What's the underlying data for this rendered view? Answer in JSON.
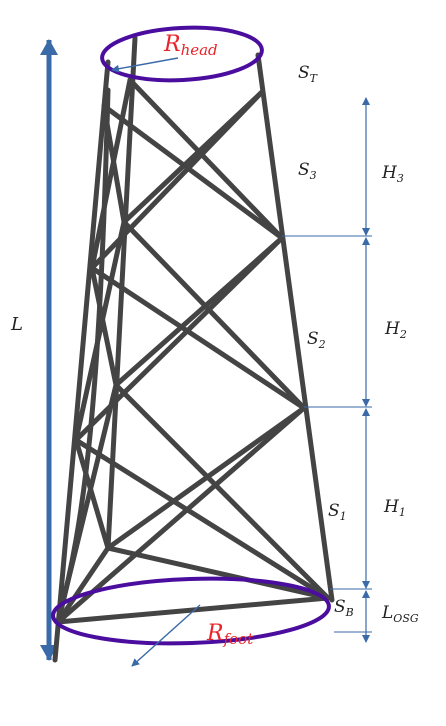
{
  "labels": {
    "r_head": "R",
    "r_head_sub": "head",
    "r_foot": "R",
    "r_foot_sub": "foot",
    "length": "L",
    "s_top": "S",
    "s_top_sub": "T",
    "s3": "S",
    "s3_sub": "3",
    "s2": "S",
    "s2_sub": "2",
    "s1": "S",
    "s1_sub": "1",
    "s_base": "S",
    "s_base_sub": "B",
    "h3": "H",
    "h3_sub": "3",
    "h2": "H",
    "h2_sub": "2",
    "h1": "H",
    "h1_sub": "1",
    "l_osg": "L",
    "l_osg_sub": "OSG"
  },
  "colors": {
    "structure": "#444444",
    "ellipse": "#4b0d9e",
    "arrow": "#3a6aa8",
    "red_label": "#e8242a"
  }
}
